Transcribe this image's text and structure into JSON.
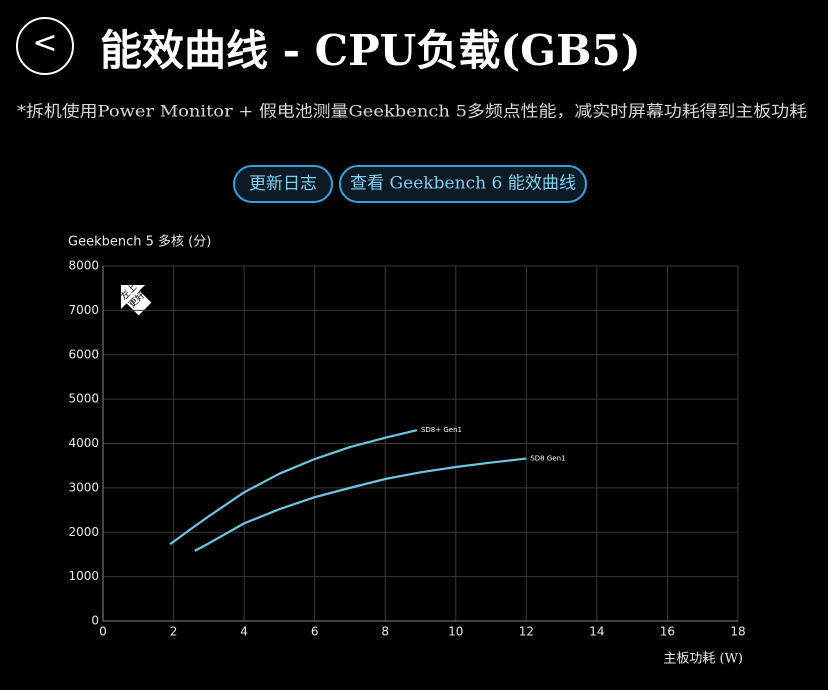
{
  "header": {
    "back": "<",
    "title": "能效曲线 - CPU负载(GB5)",
    "subtitle": "*拆机使用Power Monitor + 假电池测量Geekbench 5多频点性能，减实时屏幕功耗得到主板功耗"
  },
  "buttons": [
    "更新日志",
    "查看 Geekbench 6 能效曲线"
  ],
  "chart_data": {
    "type": "line",
    "y_label": "Geekbench 5 多核 (分)",
    "x_label": "主板功耗 (W)",
    "annotation": [
      "左上",
      "更好"
    ],
    "xlim": [
      0,
      18
    ],
    "xticks": [
      0,
      2,
      4,
      6,
      8,
      10,
      12,
      14,
      16,
      18
    ],
    "ylim": [
      0,
      8000
    ],
    "yticks": [
      0,
      1000,
      2000,
      3000,
      4000,
      5000,
      6000,
      7000,
      8000
    ],
    "grid": true,
    "series": [
      {
        "name": "SD8+ Gen1",
        "color": "#6cc6df",
        "x": [
          1.9,
          2.5,
          3,
          4,
          5,
          6,
          7,
          8,
          8.9
        ],
        "values": [
          1730,
          2080,
          2360,
          2900,
          3320,
          3650,
          3920,
          4130,
          4300
        ]
      },
      {
        "name": "SD8 Gen1",
        "color": "#6cc6df",
        "x": [
          2.6,
          3,
          4,
          5,
          6,
          7,
          8,
          9,
          10,
          11,
          12
        ],
        "values": [
          1580,
          1750,
          2200,
          2520,
          2790,
          3000,
          3200,
          3350,
          3470,
          3570,
          3660
        ]
      }
    ]
  }
}
